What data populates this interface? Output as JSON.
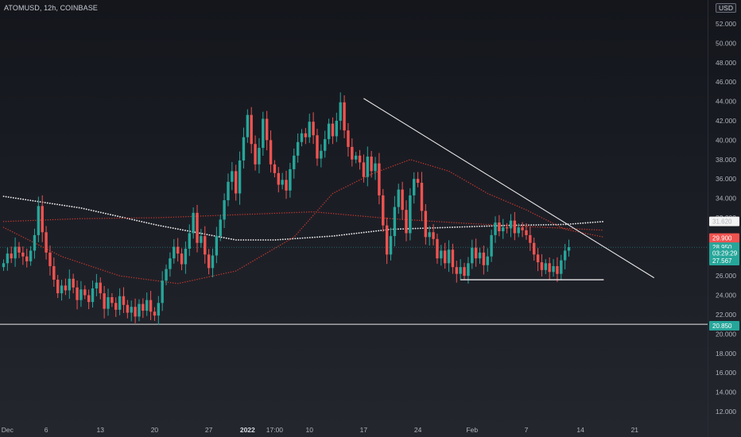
{
  "header": {
    "symbol": "ATOMUSD, 12h, COINBASE",
    "currency": "USD"
  },
  "colors": {
    "up": "#26a69a",
    "down": "#ef5350",
    "trendline": "#e8e8e8",
    "support": "#e8e8e8",
    "ma_white": "#e8e8e8",
    "ma_red": "#c0392b"
  },
  "chart_data": {
    "type": "candlestick",
    "ylim": [
      12.5,
      54.5
    ],
    "y_ticks": [
      "52.000",
      "50.000",
      "48.000",
      "46.000",
      "44.000",
      "42.000",
      "40.000",
      "38.000",
      "36.000",
      "34.000",
      "32.000",
      "30.000",
      "28.000",
      "26.000",
      "24.000",
      "22.000",
      "20.000",
      "18.000",
      "16.000",
      "14.000",
      "12.000"
    ],
    "x_ticks": [
      {
        "label": "Dec",
        "index": 1,
        "bold": false
      },
      {
        "label": "6",
        "index": 11,
        "bold": false
      },
      {
        "label": "13",
        "index": 25,
        "bold": false
      },
      {
        "label": "20",
        "index": 39,
        "bold": false
      },
      {
        "label": "27",
        "index": 53,
        "bold": false
      },
      {
        "label": "2022",
        "index": 63,
        "bold": true
      },
      {
        "label": "17:00",
        "index": 70,
        "bold": false
      },
      {
        "label": "10",
        "index": 79,
        "bold": false
      },
      {
        "label": "17",
        "index": 93,
        "bold": false
      },
      {
        "label": "24",
        "index": 107,
        "bold": false
      },
      {
        "label": "Feb",
        "index": 121,
        "bold": false
      },
      {
        "label": "7",
        "index": 135,
        "bold": false
      },
      {
        "label": "14",
        "index": 149,
        "bold": false
      },
      {
        "label": "21",
        "index": 163,
        "bold": false
      }
    ],
    "closes": [
      27.3,
      28.3,
      27.8,
      29.0,
      28.4,
      28.0,
      27.5,
      28.6,
      30.2,
      33.2,
      30.5,
      28.4,
      27.0,
      25.6,
      24.2,
      25.0,
      24.5,
      25.7,
      24.8,
      23.5,
      24.6,
      24.0,
      23.3,
      24.7,
      25.3,
      24.2,
      22.6,
      23.8,
      23.2,
      22.5,
      23.9,
      23.0,
      22.2,
      22.8,
      21.8,
      23.1,
      22.4,
      23.5,
      22.3,
      21.9,
      23.2,
      25.5,
      26.7,
      27.8,
      29.0,
      28.3,
      27.2,
      28.8,
      30.4,
      32.5,
      29.4,
      30.1,
      28.2,
      26.8,
      28.1,
      30.1,
      31.8,
      33.8,
      35.7,
      36.8,
      34.5,
      37.9,
      40.3,
      42.6,
      39.6,
      37.5,
      39.2,
      42.2,
      40.0,
      37.5,
      36.6,
      35.4,
      35.9,
      34.8,
      37.0,
      38.4,
      39.8,
      40.7,
      40.3,
      41.9,
      40.5,
      38.1,
      38.9,
      40.1,
      41.7,
      40.4,
      42.0,
      43.9,
      41.0,
      39.3,
      38.0,
      38.4,
      37.7,
      36.2,
      38.3,
      36.8,
      37.6,
      34.3,
      31.2,
      28.2,
      30.1,
      33.1,
      34.9,
      32.8,
      30.4,
      34.3,
      36.0,
      35.6,
      32.7,
      30.0,
      30.5,
      29.8,
      27.8,
      28.6,
      27.3,
      28.7,
      26.9,
      26.2,
      26.9,
      26.0,
      27.3,
      28.9,
      27.8,
      28.4,
      27.1,
      28.0,
      30.2,
      31.5,
      30.6,
      31.0,
      30.9,
      31.7,
      30.4,
      31.0,
      30.7,
      30.2,
      29.4,
      28.2,
      27.4,
      26.6,
      27.3,
      26.4,
      27.0,
      26.2,
      27.6,
      28.6,
      28.95
    ],
    "ma_white_200": [
      {
        "index": 0,
        "value": 34.2
      },
      {
        "index": 20,
        "value": 33.0
      },
      {
        "index": 40,
        "value": 31.2
      },
      {
        "index": 60,
        "value": 29.7
      },
      {
        "index": 70,
        "value": 29.7
      },
      {
        "index": 85,
        "value": 30.1
      },
      {
        "index": 100,
        "value": 30.8
      },
      {
        "index": 115,
        "value": 31.0
      },
      {
        "index": 130,
        "value": 31.2
      },
      {
        "index": 145,
        "value": 31.3
      },
      {
        "index": 155,
        "value": 31.6
      }
    ],
    "ma_red_100": [
      {
        "index": 0,
        "value": 31.6
      },
      {
        "index": 20,
        "value": 31.9
      },
      {
        "index": 40,
        "value": 32.0
      },
      {
        "index": 60,
        "value": 32.3
      },
      {
        "index": 80,
        "value": 32.6
      },
      {
        "index": 100,
        "value": 31.9
      },
      {
        "index": 120,
        "value": 31.4
      },
      {
        "index": 140,
        "value": 31.0
      },
      {
        "index": 155,
        "value": 30.7
      }
    ],
    "ma_red_50": [
      {
        "index": 0,
        "value": 31.0
      },
      {
        "index": 15,
        "value": 28.0
      },
      {
        "index": 30,
        "value": 26.0
      },
      {
        "index": 45,
        "value": 25.2
      },
      {
        "index": 60,
        "value": 26.5
      },
      {
        "index": 75,
        "value": 30.0
      },
      {
        "index": 85,
        "value": 34.5
      },
      {
        "index": 95,
        "value": 36.5
      },
      {
        "index": 105,
        "value": 38.0
      },
      {
        "index": 115,
        "value": 36.8
      },
      {
        "index": 125,
        "value": 34.5
      },
      {
        "index": 135,
        "value": 32.8
      },
      {
        "index": 145,
        "value": 30.8
      },
      {
        "index": 155,
        "value": 30.0
      }
    ],
    "trendline": {
      "from": {
        "index": 93,
        "value": 44.3
      },
      "to": {
        "index": 168,
        "value": 25.8
      }
    },
    "support_line": {
      "from": {
        "index": 118,
        "value": 25.6
      },
      "to": {
        "index": 155,
        "value": 25.6
      }
    },
    "horizontal_line": {
      "value": 21.0
    },
    "current_price_line": {
      "value": 28.95
    },
    "badges": [
      {
        "text": "31.620",
        "value": 31.62,
        "color": "#f2f2f2",
        "text_color": "#b0b3bb"
      },
      {
        "text": "29.900",
        "value": 29.9,
        "color": "#ef5350",
        "text_color": "#ffffff"
      },
      {
        "text": "28.950",
        "value": 28.95,
        "color": "#26a69a",
        "text_color": "#ffffff"
      },
      {
        "text": "03:29:29",
        "value": 28.35,
        "color": "#26a69a",
        "text_color": "#ffffff"
      },
      {
        "text": "27.567",
        "value": 27.567,
        "color": "#26a69a",
        "text_color": "#ffffff"
      },
      {
        "text": "20.850",
        "value": 20.85,
        "color": "#26a69a",
        "text_color": "#ffffff"
      }
    ]
  }
}
